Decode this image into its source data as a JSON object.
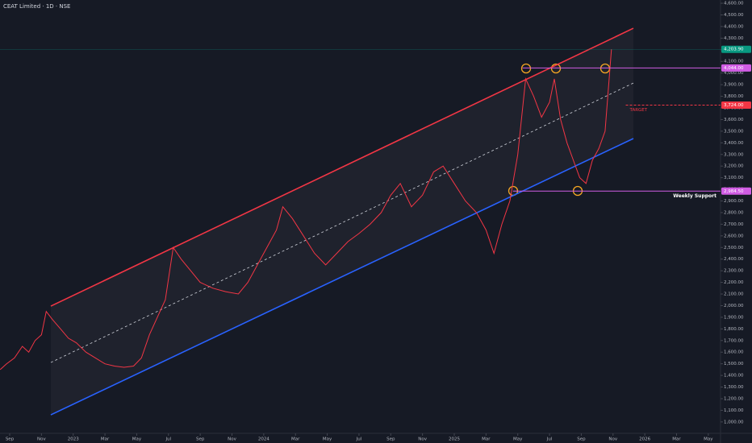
{
  "chart_data": {
    "type": "line",
    "title": "CEAT Limited · 1D · NSE",
    "x": [
      -0.6,
      -0.2,
      0.3,
      0.8,
      1.2,
      1.6,
      2.0,
      2.3,
      2.7,
      3.2,
      3.7,
      4.2,
      4.8,
      5.4,
      6.0,
      6.6,
      7.2,
      7.8,
      8.3,
      8.8,
      9.3,
      9.8,
      10.3,
      10.8,
      11.4,
      12.0,
      12.8,
      13.6,
      14.4,
      15.0,
      15.6,
      16.2,
      16.8,
      17.2,
      17.8,
      18.5,
      19.2,
      19.9,
      20.6,
      21.3,
      22.0,
      22.7,
      23.4,
      24.0,
      24.6,
      25.3,
      26.0,
      26.7,
      27.3,
      28.0,
      28.7,
      29.4,
      30.0,
      30.5,
      31.0,
      31.5,
      32.0,
      32.5,
      33.0,
      33.5,
      34.0,
      34.3,
      34.7,
      35.1,
      35.5,
      35.9,
      36.3,
      36.7,
      37.1,
      37.5,
      37.9
    ],
    "values": [
      1450,
      1500,
      1550,
      1650,
      1600,
      1700,
      1750,
      1950,
      1880,
      1800,
      1720,
      1680,
      1600,
      1550,
      1500,
      1480,
      1470,
      1480,
      1550,
      1750,
      1900,
      2050,
      2500,
      2400,
      2300,
      2200,
      2150,
      2120,
      2100,
      2200,
      2350,
      2500,
      2650,
      2850,
      2750,
      2600,
      2450,
      2350,
      2450,
      2550,
      2620,
      2700,
      2800,
      2950,
      3050,
      2850,
      2950,
      3150,
      3200,
      3050,
      2900,
      2800,
      2650,
      2450,
      2700,
      2900,
      3300,
      3950,
      3800,
      3620,
      3750,
      3950,
      3600,
      3400,
      3250,
      3100,
      3050,
      3250,
      3350,
      3500,
      4203.9
    ],
    "color": "#f23645",
    "xlim": [
      -0.61,
      44.77
    ],
    "ylim": [
      902,
      4628
    ],
    "xticks": [
      {
        "value": 0,
        "label": "Sep"
      },
      {
        "value": 2,
        "label": "Nov"
      },
      {
        "value": 4,
        "label": "2023"
      },
      {
        "value": 6,
        "label": "Mar"
      },
      {
        "value": 8,
        "label": "May"
      },
      {
        "value": 10,
        "label": "Jul"
      },
      {
        "value": 12,
        "label": "Sep"
      },
      {
        "value": 14,
        "label": "Nov"
      },
      {
        "value": 16,
        "label": "2024"
      },
      {
        "value": 18,
        "label": "Mar"
      },
      {
        "value": 20,
        "label": "May"
      },
      {
        "value": 22,
        "label": "Jul"
      },
      {
        "value": 24,
        "label": "Sep"
      },
      {
        "value": 26,
        "label": "Nov"
      },
      {
        "value": 28,
        "label": "2025"
      },
      {
        "value": 30,
        "label": "Mar"
      },
      {
        "value": 32,
        "label": "May"
      },
      {
        "value": 34,
        "label": "Jul"
      },
      {
        "value": 36,
        "label": "Sep"
      },
      {
        "value": 38,
        "label": "Nov"
      },
      {
        "value": 40,
        "label": "2026"
      },
      {
        "value": 42,
        "label": "Mar"
      },
      {
        "value": 44,
        "label": "May"
      }
    ],
    "yticks": [
      {
        "value": 1000,
        "label": "1,000.00"
      },
      {
        "value": 1100,
        "label": "1,100.00"
      },
      {
        "value": 1200,
        "label": "1,200.00"
      },
      {
        "value": 1300,
        "label": "1,300.00"
      },
      {
        "value": 1400,
        "label": "1,400.00"
      },
      {
        "value": 1500,
        "label": "1,500.00"
      },
      {
        "value": 1600,
        "label": "1,600.00"
      },
      {
        "value": 1700,
        "label": "1,700.00"
      },
      {
        "value": 1800,
        "label": "1,800.00"
      },
      {
        "value": 1900,
        "label": "1,900.00"
      },
      {
        "value": 2000,
        "label": "2,000.00"
      },
      {
        "value": 2100,
        "label": "2,100.00"
      },
      {
        "value": 2200,
        "label": "2,200.00"
      },
      {
        "value": 2300,
        "label": "2,300.00"
      },
      {
        "value": 2400,
        "label": "2,400.00"
      },
      {
        "value": 2500,
        "label": "2,500.00"
      },
      {
        "value": 2600,
        "label": "2,600.00"
      },
      {
        "value": 2700,
        "label": "2,700.00"
      },
      {
        "value": 2800,
        "label": "2,800.00"
      },
      {
        "value": 2900,
        "label": "2,900.00"
      },
      {
        "value": 3000,
        "label": "3,000.00"
      },
      {
        "value": 3100,
        "label": "3,100.00"
      },
      {
        "value": 3200,
        "label": "3,200.00"
      },
      {
        "value": 3300,
        "label": "3,300.00"
      },
      {
        "value": 3400,
        "label": "3,400.00"
      },
      {
        "value": 3500,
        "label": "3,500.00"
      },
      {
        "value": 3600,
        "label": "3,600.00"
      },
      {
        "value": 3700,
        "label": "3,700.00"
      },
      {
        "value": 3800,
        "label": "3,800.00"
      },
      {
        "value": 3900,
        "label": "3,900.00"
      },
      {
        "value": 4000,
        "label": "4,000.00"
      },
      {
        "value": 4100,
        "label": "4,100.00"
      },
      {
        "value": 4200,
        "label": "4,200.00"
      },
      {
        "value": 4300,
        "label": "4,300.00"
      },
      {
        "value": 4400,
        "label": "4,400.00"
      },
      {
        "value": 4500,
        "label": "4,500.00"
      },
      {
        "value": 4600,
        "label": "4,600.00"
      }
    ],
    "grid": false,
    "trendlines": [
      {
        "x": [
          2.59,
          39.28
        ],
        "values": [
          1996,
          4385
        ],
        "color": "#f23645",
        "dashed": false
      },
      {
        "x": [
          2.59,
          39.28
        ],
        "values": [
          1061,
          3437
        ],
        "color": "#2962ff",
        "dashed": false
      },
      {
        "x": [
          2.59,
          39.28
        ],
        "values": [
          1511,
          3914
        ],
        "color": "#d1d4dc",
        "dashed": true
      }
    ],
    "levels": [
      {
        "value": 4203.9,
        "label": "4,203.90",
        "color": "#089981",
        "x_start": -0.61
      },
      {
        "value": 4044,
        "label": "4,044.00",
        "color": "#d05ce3",
        "x_start": 32.3
      },
      {
        "value": 3724,
        "label": "3,724.00",
        "color": "#f23645",
        "x_start": 38.8,
        "dashed": true,
        "annotation": "TARGET"
      },
      {
        "value": 2984.5,
        "label": "2,984.50",
        "color": "#d05ce3",
        "x_start": 31.7,
        "annotation": "Weekly Support"
      }
    ]
  }
}
